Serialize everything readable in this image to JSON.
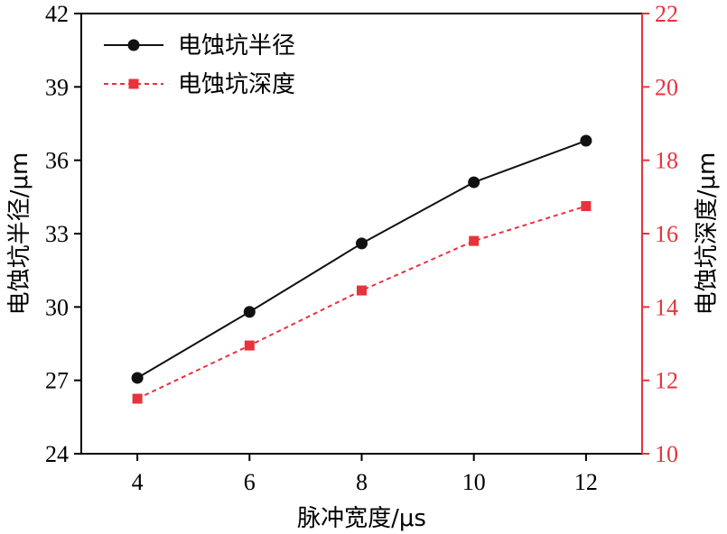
{
  "chart_data": {
    "type": "line",
    "x": [
      4,
      6,
      8,
      10,
      12
    ],
    "xticks": [
      "4",
      "6",
      "8",
      "10",
      "12"
    ],
    "xlabel": "脉冲宽度/μs",
    "xlim": [
      3,
      13
    ],
    "left_axis": {
      "label": "电蚀坑半径/μm",
      "ylim": [
        24,
        42
      ],
      "ticks": [
        "24",
        "27",
        "30",
        "33",
        "36",
        "39",
        "42"
      ],
      "color": "#000000"
    },
    "right_axis": {
      "label": "电蚀坑深度/μm",
      "ylim": [
        10,
        22
      ],
      "ticks": [
        "10",
        "12",
        "14",
        "16",
        "18",
        "20",
        "22"
      ],
      "color": "#e8323c"
    },
    "series": [
      {
        "name": "电蚀坑半径",
        "axis": "left",
        "marker": "circle",
        "line": "solid",
        "color": "#111111",
        "values": [
          27.1,
          29.8,
          32.6,
          35.1,
          36.8
        ]
      },
      {
        "name": "电蚀坑深度",
        "axis": "right",
        "marker": "square",
        "line": "dashed",
        "color": "#e8323c",
        "values": [
          11.5,
          12.95,
          14.45,
          15.8,
          16.75
        ]
      }
    ],
    "legend_position": "top-left",
    "grid": false
  }
}
